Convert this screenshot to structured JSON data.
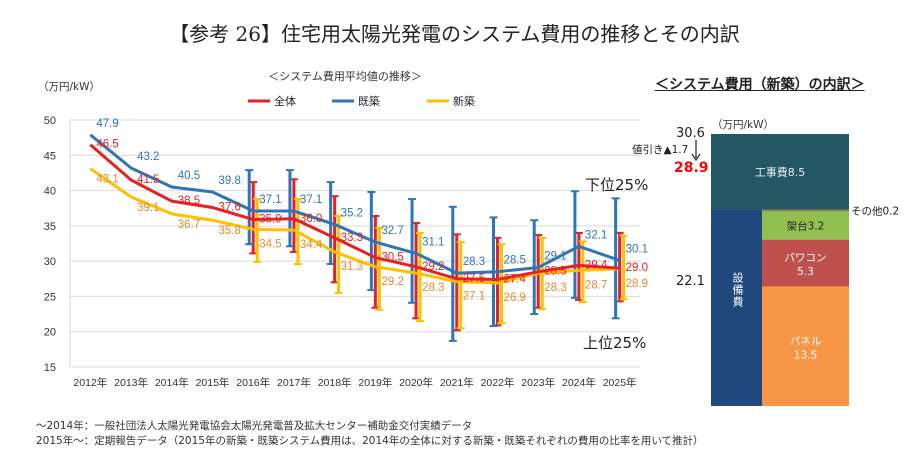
{
  "title": "【参考 26】住宅用太陽光発電のシステム費用の推移とその内訳",
  "footnotes": [
    "～2014年：一般社団法人太陽光発電協会太陽光発電普及拡大センター補助金交付実績データ",
    "2015年～：定期報告データ（2015年の新築・既築システム費用は、2014年の全体に対する新築・既築それぞれの費用の比率を用いて推計）"
  ],
  "chart_data": [
    {
      "type": "line",
      "title": "＜システム費用平均値の推移＞",
      "ylabel": "（万円/kW）",
      "ylim": [
        15,
        50
      ],
      "yticks": [
        15,
        20,
        25,
        30,
        35,
        40,
        45,
        50
      ],
      "grid": true,
      "legend_position": "top",
      "categories": [
        "2012年",
        "2013年",
        "2014年",
        "2015年",
        "2016年",
        "2017年",
        "2018年",
        "2019年",
        "2020年",
        "2021年",
        "2022年",
        "2023年",
        "2024年",
        "2025年"
      ],
      "annotations": {
        "lower": "下位25%",
        "upper": "上位25%"
      },
      "series": [
        {
          "name": "全体",
          "color": "#e8201f",
          "label_color": "#e8201f",
          "values": [
            46.5,
            41.5,
            38.5,
            37.6,
            35.9,
            36.0,
            33.3,
            30.5,
            29.2,
            27.5,
            27.4,
            28.5,
            29.4,
            29.0
          ],
          "error_high": [
            null,
            null,
            null,
            null,
            41.2,
            41.6,
            39.2,
            36.4,
            35.4,
            33.8,
            33.3,
            33.7,
            34.0,
            34.0
          ],
          "error_low": [
            null,
            null,
            null,
            null,
            31.1,
            31.3,
            27.0,
            23.4,
            21.9,
            20.2,
            20.9,
            23.4,
            24.5,
            24.3
          ]
        },
        {
          "name": "既築",
          "color": "#2e75b6",
          "label_color": "#2e75b6",
          "values": [
            47.9,
            43.2,
            40.5,
            39.8,
            37.1,
            37.1,
            35.2,
            32.7,
            31.1,
            28.3,
            28.5,
            29.1,
            32.1,
            30.1
          ],
          "error_high": [
            null,
            null,
            null,
            null,
            42.9,
            42.9,
            41.2,
            39.8,
            38.8,
            37.7,
            36.2,
            35.8,
            39.9,
            38.9
          ],
          "error_low": [
            null,
            null,
            null,
            null,
            32.4,
            32.1,
            29.6,
            25.9,
            24.1,
            18.7,
            20.8,
            22.5,
            24.8,
            21.9
          ]
        },
        {
          "name": "新築",
          "color": "#ffc000",
          "label_color": "#e58a2c",
          "values": [
            43.1,
            39.1,
            36.7,
            35.8,
            34.5,
            34.4,
            31.3,
            29.2,
            28.3,
            27.1,
            26.9,
            28.3,
            28.7,
            28.9
          ],
          "error_high": [
            null,
            null,
            null,
            null,
            38.8,
            38.8,
            36.4,
            34.7,
            34.0,
            32.7,
            32.4,
            33.3,
            32.8,
            33.6
          ],
          "error_low": [
            null,
            null,
            null,
            null,
            29.9,
            29.6,
            25.5,
            23.1,
            21.5,
            20.5,
            21.2,
            23.2,
            24.2,
            24.6
          ]
        }
      ]
    },
    {
      "type": "bar",
      "title": "＜システム費用（新築）の内訳＞",
      "ylabel": "（万円/kW）",
      "total_before": "30.6",
      "discount_label": "値引き▲1.7",
      "total_after": "28.9",
      "equipment_total": "22.1",
      "segments": [
        {
          "name": "工事費",
          "value": 8.5,
          "color": "#235764",
          "label": "工事費8.5"
        },
        {
          "name": "設備費",
          "value": 22.1,
          "color": "#1f497d",
          "label": "設備費"
        },
        {
          "name": "その他",
          "value": 0.2,
          "color": "#8c7f4f",
          "label": "その他0.2"
        },
        {
          "name": "架台",
          "value": 3.2,
          "color": "#92c050",
          "label": "架台3.2"
        },
        {
          "name": "パワコン",
          "value": 5.3,
          "color": "#c0504d",
          "label": "パワコン",
          "value_label": "5.3"
        },
        {
          "name": "パネル",
          "value": 13.5,
          "color": "#f79646",
          "label": "パネル",
          "value_label": "13.5"
        }
      ]
    }
  ]
}
